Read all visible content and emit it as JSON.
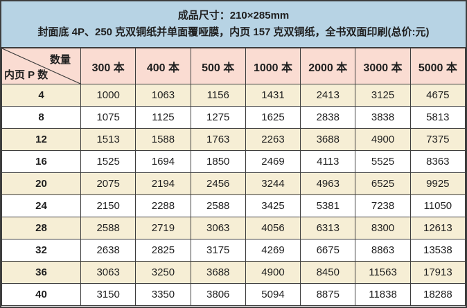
{
  "header": {
    "line1": "成品尺寸：210×285mm",
    "line2": "封面底 4P、250 克双铜纸并单面覆哑膜，内页 157 克双铜纸，全书双面印刷(总价:元)"
  },
  "table": {
    "corner": {
      "top_right": "数量",
      "bottom_left": "内页 P 数"
    },
    "columns": [
      "300 本",
      "400 本",
      "500 本",
      "1000 本",
      "2000 本",
      "3000 本",
      "5000 本"
    ],
    "rows": [
      {
        "pages": "4",
        "values": [
          1000,
          1063,
          1156,
          1431,
          2413,
          3125,
          4675
        ]
      },
      {
        "pages": "8",
        "values": [
          1075,
          1125,
          1275,
          1625,
          2838,
          3838,
          5813
        ]
      },
      {
        "pages": "12",
        "values": [
          1513,
          1588,
          1763,
          2263,
          3688,
          4900,
          7375
        ]
      },
      {
        "pages": "16",
        "values": [
          1525,
          1694,
          1850,
          2469,
          4113,
          5525,
          8363
        ]
      },
      {
        "pages": "20",
        "values": [
          2075,
          2194,
          2456,
          3244,
          4963,
          6525,
          9925
        ]
      },
      {
        "pages": "24",
        "values": [
          2150,
          2288,
          2588,
          3425,
          5381,
          7238,
          11050
        ]
      },
      {
        "pages": "28",
        "values": [
          2588,
          2719,
          3063,
          4056,
          6313,
          8300,
          12613
        ]
      },
      {
        "pages": "32",
        "values": [
          2638,
          2825,
          3175,
          4269,
          6675,
          8863,
          13538
        ]
      },
      {
        "pages": "36",
        "values": [
          3063,
          3250,
          3688,
          4900,
          8450,
          11563,
          17913
        ]
      },
      {
        "pages": "40",
        "values": [
          3150,
          3350,
          3806,
          5094,
          8875,
          11838,
          18288
        ]
      }
    ]
  },
  "colors": {
    "header_bg": "#b7d3e4",
    "column_header_bg": "#fadcd2",
    "row_alt_bg": "#f6eed5",
    "row_bg": "#ffffff",
    "border": "#3d3d3d",
    "text": "#1f1f1f"
  }
}
